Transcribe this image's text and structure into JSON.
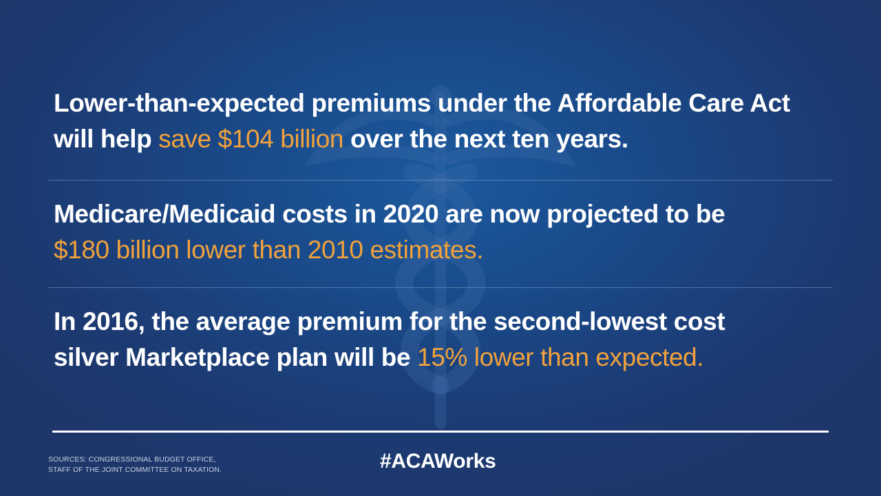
{
  "statements": [
    {
      "line1": "Lower-than-expected premiums under the Affordable Care Act",
      "line2_prefix": "will help ",
      "highlight": "save $104 billion",
      "line2_suffix": " over the next ten years."
    },
    {
      "line1": "Medicare/Medicaid costs in 2020 are now projected to be",
      "highlight": "$180 billion lower than 2010 estimates."
    },
    {
      "line1": "In 2016, the average premium for the second-lowest cost",
      "line2_prefix": "silver Marketplace plan will be ",
      "highlight": "15% lower than expected."
    }
  ],
  "footer": {
    "sources_line1": "SOURCES: CONGRESSIONAL BUDGET OFFICE,",
    "sources_line2": "STAFF OF THE JOINT COMMITTEE ON TAXATION.",
    "hashtag": "#ACAWorks"
  },
  "colors": {
    "background": "#1a4786",
    "text": "#ffffff",
    "highlight": "#f1a23c"
  },
  "icons": [
    "caduceus-watermark-icon"
  ]
}
